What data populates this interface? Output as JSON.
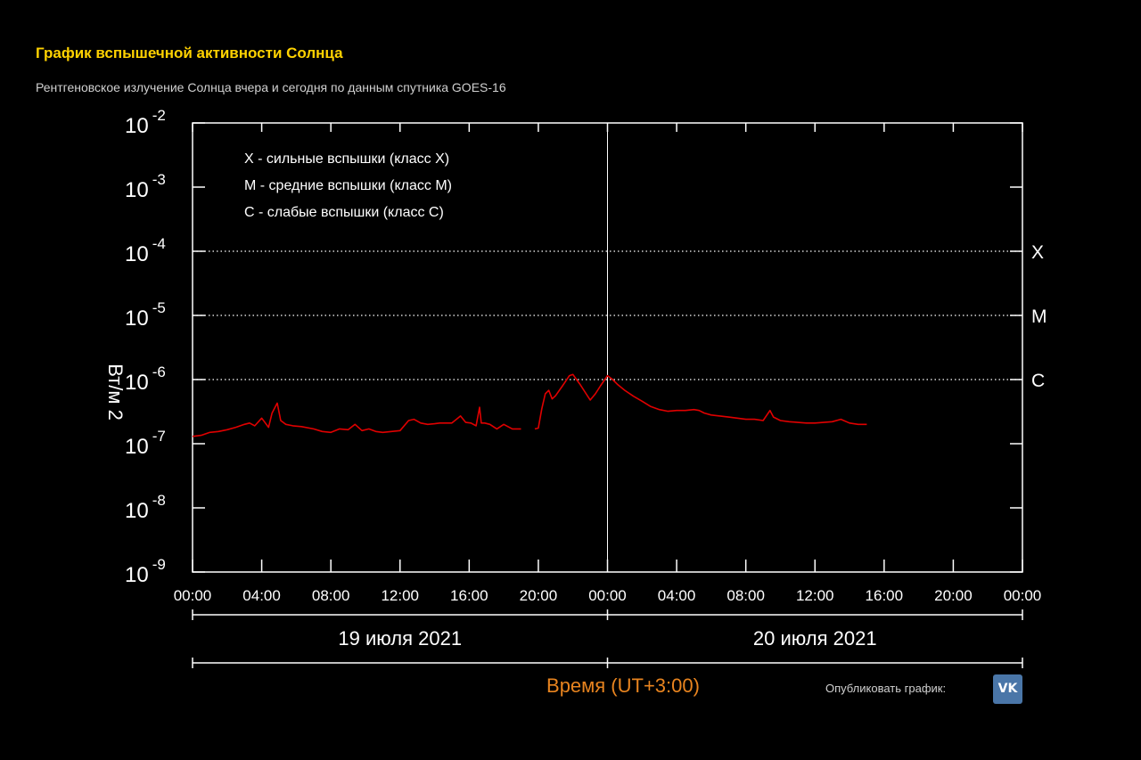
{
  "header": {
    "title": "График вспышечной активности Солнца",
    "subtitle": "Рентгеновское излучение Солнца вчера и сегодня по данным спутника GOES-16"
  },
  "footer": {
    "publish_label": "Опубликовать график:",
    "vk_label": "VK"
  },
  "colors": {
    "title": "#ffd200",
    "xlabel": "#e8841f",
    "series": "#e00000",
    "vk": "#4a76a8"
  },
  "chart_data": {
    "type": "line",
    "title": "",
    "xlabel": "Время (UT+3:00)",
    "ylabel": "Вт/м 2",
    "yscale": "log",
    "ylim": [
      1e-09,
      0.01
    ],
    "xlim": [
      0,
      48
    ],
    "y_ticks": [
      {
        "base": "10",
        "exp": "-2",
        "value": 0.01
      },
      {
        "base": "10",
        "exp": "-3",
        "value": 0.001
      },
      {
        "base": "10",
        "exp": "-4",
        "value": 0.0001
      },
      {
        "base": "10",
        "exp": "-5",
        "value": 1e-05
      },
      {
        "base": "10",
        "exp": "-6",
        "value": 1e-06
      },
      {
        "base": "10",
        "exp": "-7",
        "value": 1e-07
      },
      {
        "base": "10",
        "exp": "-8",
        "value": 1e-08
      },
      {
        "base": "10",
        "exp": "-9",
        "value": 1e-09
      }
    ],
    "x_ticks": [
      "00:00",
      "04:00",
      "08:00",
      "12:00",
      "16:00",
      "20:00",
      "00:00",
      "04:00",
      "08:00",
      "12:00",
      "16:00",
      "20:00",
      "00:00"
    ],
    "days": [
      {
        "label": "19 июля 2021",
        "from": 0,
        "to": 24
      },
      {
        "label": "20 июля 2021",
        "from": 24,
        "to": 48
      }
    ],
    "class_levels": [
      {
        "label": "X",
        "value": 0.0001
      },
      {
        "label": "M",
        "value": 1e-05
      },
      {
        "label": "C",
        "value": 1e-06
      }
    ],
    "legend": [
      "X - сильные вспышки (класс X)",
      "M - средние вспышки (класс M)",
      "C - слабые вспышки (класс C)"
    ],
    "grid": false,
    "series": [
      {
        "segments": [
          {
            "x": [
              0,
              0.5,
              1,
              1.5,
              2,
              2.5,
              3,
              3.3,
              3.6,
              4,
              4.4,
              4.6,
              4.9,
              5.1,
              5.4,
              5.8,
              6.3,
              7,
              7.5,
              8,
              8.5,
              9,
              9.4,
              9.8,
              10.2,
              10.6,
              11,
              11.5,
              12,
              12.5,
              12.8,
              13.2,
              13.6,
              14,
              14.3,
              14.6,
              15,
              15.5,
              15.8,
              16.1,
              16.4,
              16.6,
              16.7,
              16.9,
              17.2,
              17.6,
              18,
              18.5,
              19
            ],
            "y": [
              1.3e-07,
              1.35e-07,
              1.5e-07,
              1.55e-07,
              1.65e-07,
              1.8e-07,
              2e-07,
              2.1e-07,
              1.9e-07,
              2.5e-07,
              1.8e-07,
              3e-07,
              4.3e-07,
              2.3e-07,
              2e-07,
              1.9e-07,
              1.85e-07,
              1.7e-07,
              1.55e-07,
              1.5e-07,
              1.7e-07,
              1.65e-07,
              2e-07,
              1.6e-07,
              1.7e-07,
              1.55e-07,
              1.5e-07,
              1.55e-07,
              1.6e-07,
              2.3e-07,
              2.4e-07,
              2.1e-07,
              2e-07,
              2.05e-07,
              2.1e-07,
              2.1e-07,
              2.1e-07,
              2.7e-07,
              2.15e-07,
              2.1e-07,
              1.9e-07,
              3.7e-07,
              2.1e-07,
              2.1e-07,
              2e-07,
              1.7e-07,
              2e-07,
              1.7e-07,
              1.7e-07
            ]
          },
          {
            "x": [
              19.8,
              20,
              20.2,
              20.4,
              20.6,
              20.8,
              21,
              21.4,
              21.8,
              22,
              22.4,
              22.8,
              23,
              23.3,
              23.6,
              24,
              24.3,
              24.6,
              25,
              25.5,
              26,
              26.5,
              27,
              27.5,
              28,
              28.5,
              29,
              29.3,
              29.6,
              30,
              30.5,
              31,
              31.5,
              32,
              32.5,
              33,
              33.4,
              33.6,
              34,
              34.5,
              35,
              35.5,
              36,
              36.5,
              37,
              37.5,
              38,
              38.5,
              39
            ],
            "y": [
              1.7e-07,
              1.75e-07,
              3.5e-07,
              6e-07,
              6.8e-07,
              5e-07,
              5.6e-07,
              8e-07,
              1.15e-06,
              1.2e-06,
              8.5e-07,
              5.8e-07,
              4.8e-07,
              6e-07,
              8e-07,
              1.15e-06,
              1e-06,
              8.3e-07,
              6.8e-07,
              5.5e-07,
              4.6e-07,
              3.8e-07,
              3.4e-07,
              3.2e-07,
              3.3e-07,
              3.3e-07,
              3.4e-07,
              3.3e-07,
              3e-07,
              2.8e-07,
              2.7e-07,
              2.6e-07,
              2.5e-07,
              2.4e-07,
              2.4e-07,
              2.3e-07,
              3.3e-07,
              2.6e-07,
              2.3e-07,
              2.2e-07,
              2.15e-07,
              2.1e-07,
              2.1e-07,
              2.15e-07,
              2.2e-07,
              2.4e-07,
              2.1e-07,
              2e-07,
              2e-07
            ]
          }
        ]
      }
    ]
  }
}
